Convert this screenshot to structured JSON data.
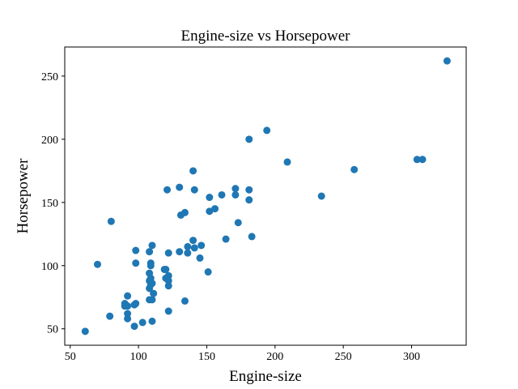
{
  "chart_data": {
    "type": "scatter",
    "title": "Engine-size vs Horsepower",
    "xlabel": "Engine-size",
    "ylabel": "Horsepower",
    "xlim": [
      46,
      340
    ],
    "ylim": [
      37,
      273
    ],
    "xticks": [
      50,
      100,
      150,
      200,
      250,
      300
    ],
    "yticks": [
      50,
      100,
      150,
      200,
      250
    ],
    "grid": false,
    "marker_color": "#1f77b4",
    "points": [
      [
        61,
        48
      ],
      [
        70,
        101
      ],
      [
        79,
        60
      ],
      [
        80,
        135
      ],
      [
        90,
        68
      ],
      [
        90,
        70
      ],
      [
        92,
        58
      ],
      [
        92,
        62
      ],
      [
        92,
        68
      ],
      [
        92,
        76
      ],
      [
        97,
        52
      ],
      [
        97,
        69
      ],
      [
        98,
        70
      ],
      [
        98,
        102
      ],
      [
        98,
        112
      ],
      [
        103,
        55
      ],
      [
        108,
        73
      ],
      [
        108,
        82
      ],
      [
        108,
        88
      ],
      [
        108,
        94
      ],
      [
        108,
        111
      ],
      [
        109,
        85
      ],
      [
        109,
        90
      ],
      [
        109,
        100
      ],
      [
        109,
        102
      ],
      [
        110,
        56
      ],
      [
        110,
        73
      ],
      [
        110,
        86
      ],
      [
        110,
        116
      ],
      [
        111,
        78
      ],
      [
        119,
        97
      ],
      [
        120,
        90
      ],
      [
        120,
        97
      ],
      [
        121,
        160
      ],
      [
        122,
        64
      ],
      [
        122,
        84
      ],
      [
        122,
        88
      ],
      [
        122,
        92
      ],
      [
        122,
        110
      ],
      [
        130,
        111
      ],
      [
        130,
        162
      ],
      [
        131,
        140
      ],
      [
        134,
        72
      ],
      [
        134,
        142
      ],
      [
        136,
        110
      ],
      [
        136,
        115
      ],
      [
        140,
        120
      ],
      [
        140,
        175
      ],
      [
        141,
        114
      ],
      [
        141,
        160
      ],
      [
        145,
        106
      ],
      [
        146,
        116
      ],
      [
        151,
        95
      ],
      [
        152,
        143
      ],
      [
        152,
        154
      ],
      [
        156,
        145
      ],
      [
        161,
        156
      ],
      [
        164,
        121
      ],
      [
        171,
        156
      ],
      [
        171,
        161
      ],
      [
        173,
        134
      ],
      [
        181,
        152
      ],
      [
        181,
        160
      ],
      [
        181,
        200
      ],
      [
        183,
        123
      ],
      [
        194,
        207
      ],
      [
        209,
        182
      ],
      [
        234,
        155
      ],
      [
        258,
        176
      ],
      [
        304,
        184
      ],
      [
        308,
        184
      ],
      [
        326,
        262
      ]
    ]
  }
}
